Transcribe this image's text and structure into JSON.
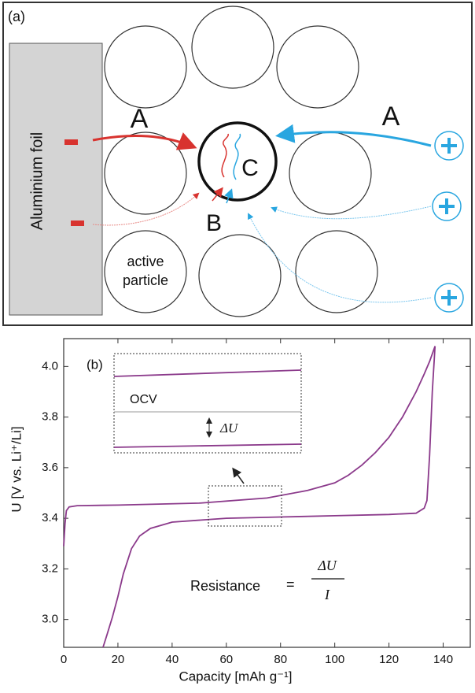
{
  "diagram": {
    "panel_label": "(a)",
    "foil_label": "Aluminium foil",
    "labels": {
      "a_left": "A",
      "a_right": "A",
      "b": "B",
      "c": "C"
    },
    "particle_label": [
      "active",
      "particle"
    ]
  },
  "chart_data": {
    "type": "line",
    "panel_label": "(b)",
    "x_label": "Capacity [mAh g⁻¹]",
    "y_label": "U [V vs. Li⁺/Li]",
    "xlim": [
      0,
      150
    ],
    "ylim": [
      2.89,
      4.11
    ],
    "xticks": [
      0,
      20,
      40,
      60,
      80,
      100,
      120,
      140
    ],
    "yticks": [
      {
        "value": 3,
        "label": "3.0"
      },
      3.2,
      3.4,
      3.6,
      3.8,
      {
        "value": 4,
        "label": "4.0"
      }
    ],
    "series": [
      {
        "color": "#8b3a8b",
        "x": [
          0,
          0.5,
          1,
          2,
          5,
          20,
          50,
          75,
          90,
          100,
          105,
          110,
          115,
          120,
          125,
          130,
          133,
          135,
          137
        ],
        "values": [
          3.29,
          3.38,
          3.43,
          3.445,
          3.45,
          3.452,
          3.46,
          3.48,
          3.51,
          3.54,
          3.57,
          3.61,
          3.66,
          3.72,
          3.8,
          3.9,
          3.97,
          4.02,
          4.08
        ]
      },
      {
        "color": "#8b3a8b",
        "x": [
          137,
          136,
          135,
          134,
          133,
          130,
          120,
          100,
          80,
          60,
          40,
          32,
          28,
          25,
          22,
          20,
          18,
          16,
          14.5
        ],
        "values": [
          4.08,
          3.9,
          3.65,
          3.47,
          3.44,
          3.42,
          3.415,
          3.41,
          3.405,
          3.4,
          3.385,
          3.36,
          3.33,
          3.28,
          3.18,
          3.09,
          3.01,
          2.94,
          2.89
        ]
      }
    ],
    "annotations": {
      "inset_label": "OCV",
      "inset_delta": "ΔU",
      "formula_lhs": "Resistance",
      "formula_eq": "=",
      "formula_num": "ΔU",
      "formula_den": "I"
    }
  }
}
